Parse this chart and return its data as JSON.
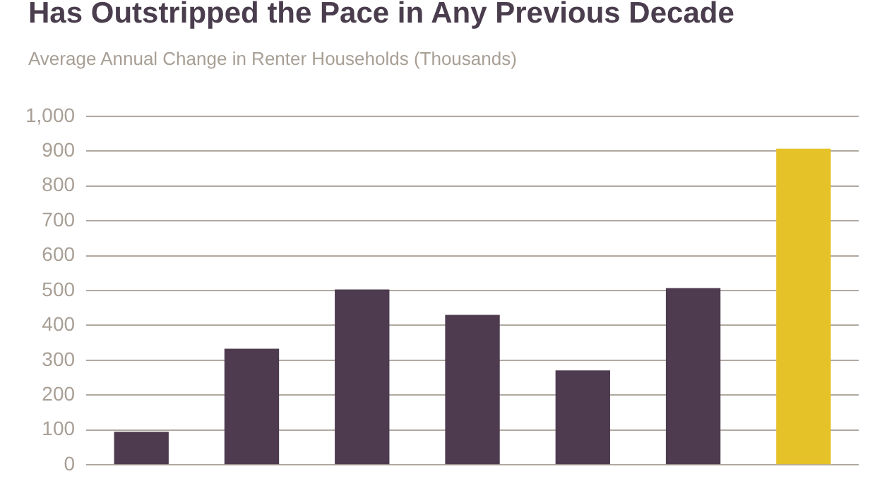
{
  "chart_data": {
    "type": "bar",
    "title": "Has Outstripped the Pace in Any Previous Decade",
    "subtitle": "Average Annual Change in Renter Households (Thousands)",
    "categories": [
      null,
      null,
      null,
      null,
      null,
      null,
      null
    ],
    "values": [
      95,
      333,
      503,
      430,
      271,
      507,
      907
    ],
    "colors": [
      "#4e3b50",
      "#4e3b50",
      "#4e3b50",
      "#4e3b50",
      "#4e3b50",
      "#4e3b50",
      "#e6c229"
    ],
    "ylim": [
      0,
      1000
    ],
    "yticks": [
      0,
      100,
      200,
      300,
      400,
      500,
      600,
      700,
      800,
      900,
      {
        "value": 1000,
        "label": "1,000"
      }
    ],
    "grid": "y",
    "tick_labels": "y"
  }
}
